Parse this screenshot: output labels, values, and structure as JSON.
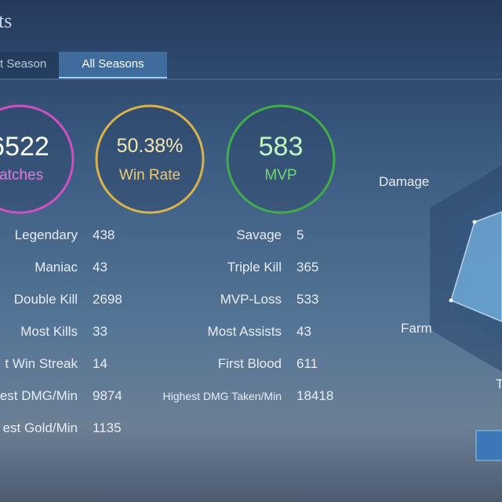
{
  "header": {
    "title": "ts"
  },
  "tabs": [
    "t Season",
    "All Seasons"
  ],
  "summary": [
    {
      "value": "6522",
      "label": "latches"
    },
    {
      "value": "50.38%",
      "label": "Win Rate"
    },
    {
      "value": "583",
      "label": "MVP"
    }
  ],
  "stats": [
    [
      "Legendary",
      "438",
      "Savage",
      "5"
    ],
    [
      "Maniac",
      "43",
      "Triple Kill",
      "365"
    ],
    [
      "Double Kill",
      "2698",
      "MVP-Loss",
      "533"
    ],
    [
      "Most Kills",
      "33",
      "Most Assists",
      "43"
    ],
    [
      "t Win Streak",
      "14",
      "First Blood",
      "611"
    ],
    [
      "est DMG/Min",
      "9874",
      "Highest DMG Taken/Min",
      "18418"
    ],
    [
      "est Gold/Min",
      "1135"
    ]
  ],
  "radar": {
    "labels": [
      "Damage",
      "Farm",
      "T"
    ]
  }
}
